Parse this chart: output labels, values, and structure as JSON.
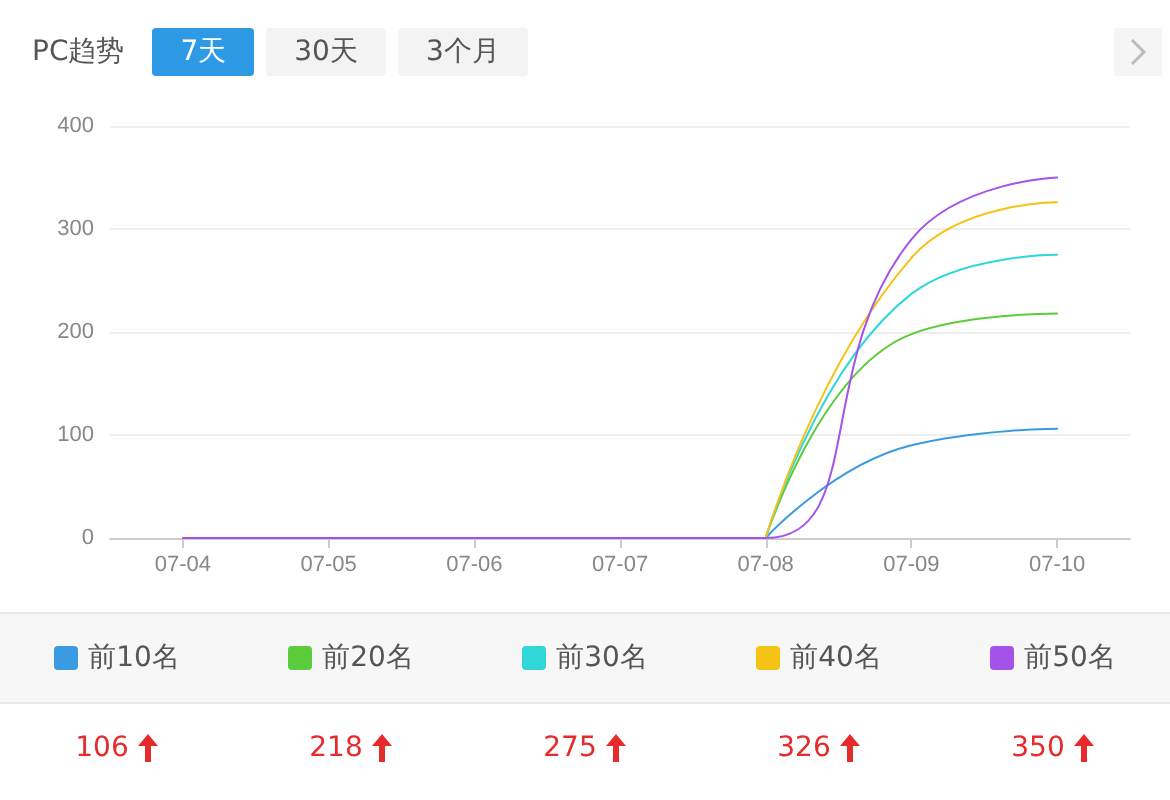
{
  "chart_data": {
    "type": "line",
    "title": "PC趋势",
    "annotations": [
      "7天",
      "30天",
      "3个月",
      "106",
      "218",
      "275",
      "326",
      "350"
    ],
    "categories": [
      "07-04",
      "07-05",
      "07-06",
      "07-07",
      "07-08",
      "07-09",
      "07-10"
    ],
    "series": [
      {
        "name": "前10名",
        "color": "#3a9be0",
        "values": [
          null,
          null,
          null,
          null,
          0,
          90,
          106
        ]
      },
      {
        "name": "前20名",
        "color": "#5ccb3c",
        "values": [
          null,
          null,
          null,
          null,
          0,
          198,
          218
        ]
      },
      {
        "name": "前30名",
        "color": "#2fd7d9",
        "values": [
          null,
          null,
          null,
          null,
          0,
          237,
          275
        ]
      },
      {
        "name": "前40名",
        "color": "#f5c216",
        "values": [
          null,
          null,
          null,
          null,
          0,
          272,
          326
        ]
      },
      {
        "name": "前50名",
        "color": "#a552e8",
        "values": [
          0,
          0,
          0,
          0,
          0,
          290,
          350
        ]
      }
    ],
    "ylim": [
      0,
      400
    ],
    "yticks": [
      0,
      100,
      200,
      300,
      400
    ],
    "grid": "y",
    "legend": "bottom",
    "marker": "none",
    "line_style": "solid"
  }
}
